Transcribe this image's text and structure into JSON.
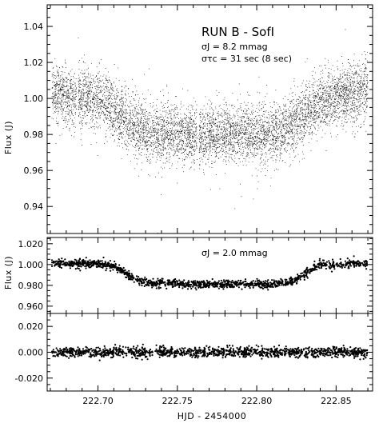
{
  "chart_data": {
    "type": "scatter",
    "xlabel": "HJD - 2454000",
    "x_ticks": [
      "222.70",
      "222.75",
      "222.80",
      "222.85"
    ],
    "xlim": [
      222.668,
      222.873
    ],
    "panels": [
      {
        "id": "raw",
        "ylabel": "Flux (J)",
        "ylim": [
          0.925,
          1.052
        ],
        "y_ticks": [
          "0.94",
          "0.96",
          "0.98",
          "1.00",
          "1.02",
          "1.04"
        ],
        "annotations": [
          "RUN B - SofI",
          "σJ = 8.2 mmag",
          "στc = 31 sec (8 sec)"
        ],
        "series": [
          {
            "x": [
              222.67,
              222.675,
              222.68,
              222.685,
              222.69,
              222.695,
              222.7,
              222.705,
              222.71,
              222.715,
              222.72,
              222.725,
              222.73,
              222.735,
              222.74,
              222.745,
              222.75,
              222.755,
              222.76,
              222.765,
              222.77,
              222.775,
              222.78,
              222.785,
              222.79,
              222.795,
              222.8,
              222.805,
              222.81,
              222.815,
              222.82,
              222.825,
              222.83,
              222.835,
              222.84,
              222.845,
              222.85,
              222.855,
              222.86,
              222.865,
              222.87
            ],
            "y": [
              1.002,
              1.003,
              1.001,
              1.0,
              1.001,
              1.0,
              0.999,
              0.997,
              0.994,
              0.99,
              0.986,
              0.983,
              0.981,
              0.98,
              0.98,
              0.98,
              0.981,
              0.98,
              0.979,
              0.979,
              0.98,
              0.98,
              0.98,
              0.979,
              0.979,
              0.98,
              0.98,
              0.98,
              0.981,
              0.982,
              0.984,
              0.987,
              0.991,
              0.995,
              0.998,
              1.0,
              1.001,
              1.002,
              1.003,
              1.004,
              1.006
            ],
            "scatter_mmag": 8.2
          }
        ]
      },
      {
        "id": "binned",
        "ylabel": "Flux (J)",
        "ylim": [
          0.953,
          1.026
        ],
        "y_ticks": [
          "0.960",
          "0.980",
          "1.000",
          "1.020"
        ],
        "annotations": [
          "σJ = 2.0 mmag"
        ],
        "series": [
          {
            "x": [
              222.67,
              222.675,
              222.68,
              222.685,
              222.69,
              222.695,
              222.7,
              222.705,
              222.71,
              222.715,
              222.72,
              222.725,
              222.73,
              222.735,
              222.74,
              222.745,
              222.75,
              222.755,
              222.76,
              222.765,
              222.77,
              222.775,
              222.78,
              222.785,
              222.79,
              222.795,
              222.8,
              222.805,
              222.81,
              222.815,
              222.82,
              222.825,
              222.83,
              222.835,
              222.84,
              222.845,
              222.85,
              222.855,
              222.86,
              222.865,
              222.87
            ],
            "y": [
              1.001,
              1.001,
              1.001,
              1.001,
              1.001,
              1.001,
              1.001,
              1.0,
              0.998,
              0.994,
              0.989,
              0.985,
              0.983,
              0.982,
              0.982,
              0.982,
              0.982,
              0.981,
              0.981,
              0.981,
              0.981,
              0.981,
              0.981,
              0.981,
              0.981,
              0.981,
              0.981,
              0.981,
              0.981,
              0.982,
              0.983,
              0.986,
              0.991,
              0.996,
              1.0,
              1.0,
              1.0,
              1.0,
              1.001,
              1.001,
              1.001
            ],
            "scatter_mmag": 2.0
          }
        ]
      },
      {
        "id": "residuals",
        "ylabel": "",
        "ylim": [
          -0.03,
          0.03
        ],
        "y_ticks": [
          "0.020",
          "0.000",
          "-0.020"
        ],
        "annotations": [],
        "series": [
          {
            "x": [
              222.67,
              222.72,
              222.77,
              222.82,
              222.87
            ],
            "y": [
              0.0,
              0.0,
              0.0,
              0.0,
              0.0
            ],
            "scatter_mmag": 2.0
          }
        ]
      }
    ],
    "gaps": [
      222.687,
      222.763
    ],
    "grid": false
  }
}
